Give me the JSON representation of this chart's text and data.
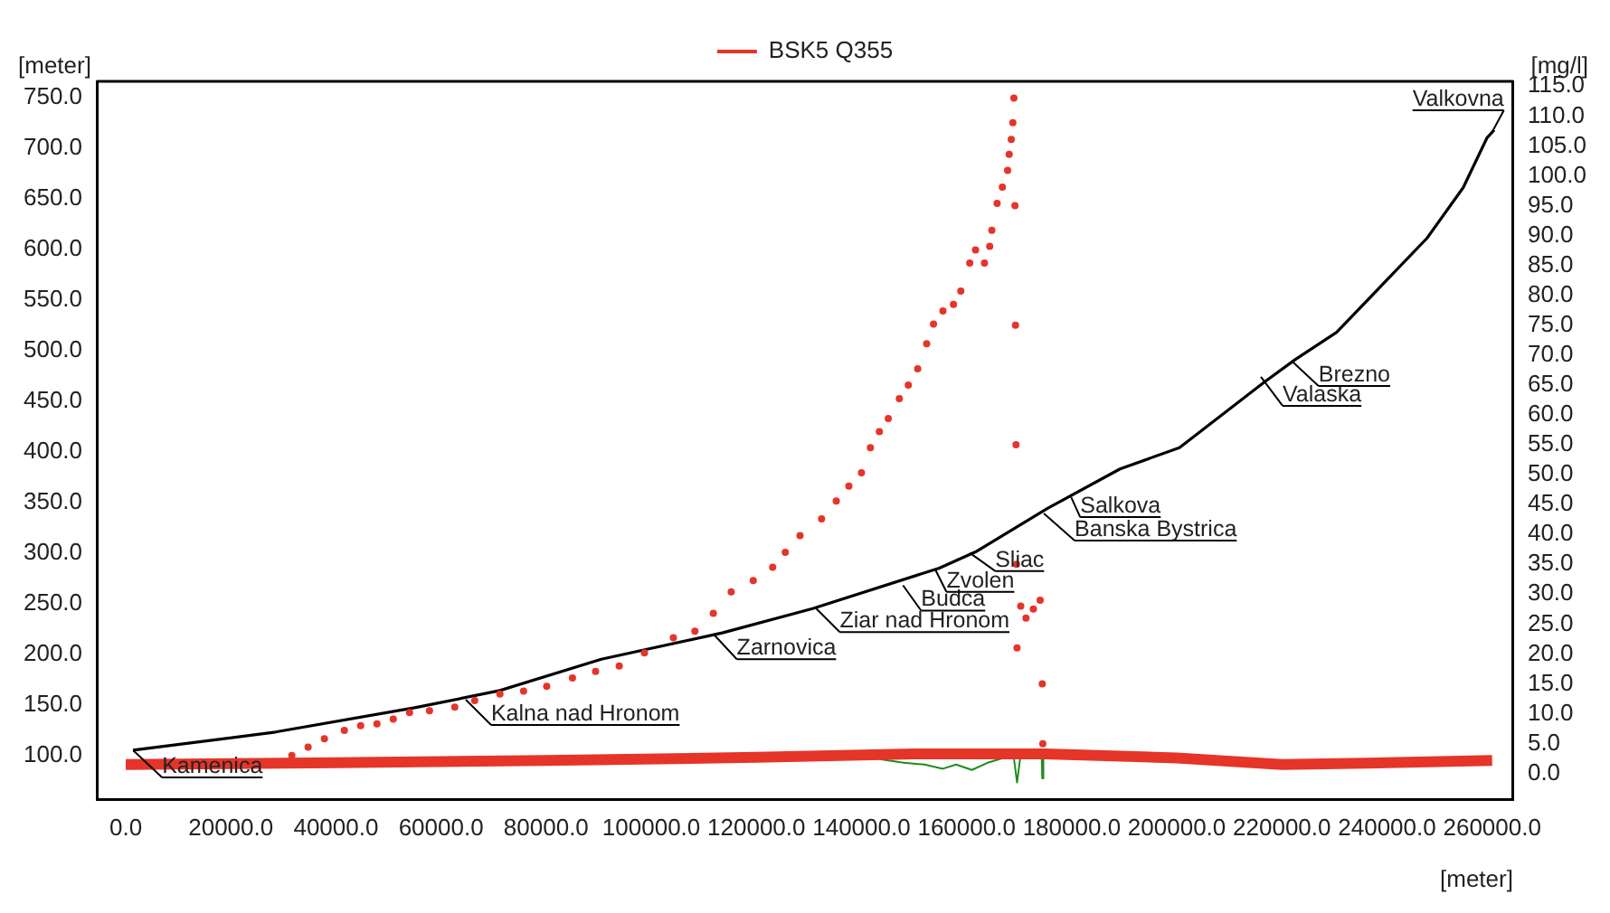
{
  "chart_data": {
    "type": "line",
    "xlabel": "[meter]",
    "ylabel": "[meter]",
    "y2label": "[mg/l]",
    "xlim": [
      -5500,
      264000
    ],
    "ylim": [
      56,
      766
    ],
    "y2lim": [
      -4.4,
      115.8
    ],
    "xticks": [
      {
        "value": 0,
        "label": "0.0"
      },
      {
        "value": 20000,
        "label": "20000.0"
      },
      {
        "value": 40000,
        "label": "40000.0"
      },
      {
        "value": 60000,
        "label": "60000.0"
      },
      {
        "value": 80000,
        "label": "80000.0"
      },
      {
        "value": 100000,
        "label": "100000.0"
      },
      {
        "value": 120000,
        "label": "120000.0"
      },
      {
        "value": 140000,
        "label": "140000.0"
      },
      {
        "value": 160000,
        "label": "160000.0"
      },
      {
        "value": 180000,
        "label": "180000.0"
      },
      {
        "value": 200000,
        "label": "200000.0"
      },
      {
        "value": 220000,
        "label": "220000.0"
      },
      {
        "value": 240000,
        "label": "240000.0"
      },
      {
        "value": 260000,
        "label": "260000.0"
      }
    ],
    "yticks": [
      {
        "value": 100,
        "label": "100.0"
      },
      {
        "value": 150,
        "label": "150.0"
      },
      {
        "value": 200,
        "label": "200.0"
      },
      {
        "value": 250,
        "label": "250.0"
      },
      {
        "value": 300,
        "label": "300.0"
      },
      {
        "value": 350,
        "label": "350.0"
      },
      {
        "value": 400,
        "label": "400.0"
      },
      {
        "value": 450,
        "label": "450.0"
      },
      {
        "value": 500,
        "label": "500.0"
      },
      {
        "value": 550,
        "label": "550.0"
      },
      {
        "value": 600,
        "label": "600.0"
      },
      {
        "value": 650,
        "label": "650.0"
      },
      {
        "value": 700,
        "label": "700.0"
      },
      {
        "value": 750,
        "label": "750.0"
      }
    ],
    "y2ticks": [
      {
        "value": 0,
        "label": "0.0"
      },
      {
        "value": 5,
        "label": "5.0"
      },
      {
        "value": 10,
        "label": "10.0"
      },
      {
        "value": 15,
        "label": "15.0"
      },
      {
        "value": 20,
        "label": "20.0"
      },
      {
        "value": 25,
        "label": "25.0"
      },
      {
        "value": 30,
        "label": "30.0"
      },
      {
        "value": 35,
        "label": "35.0"
      },
      {
        "value": 40,
        "label": "40.0"
      },
      {
        "value": 45,
        "label": "45.0"
      },
      {
        "value": 50,
        "label": "50.0"
      },
      {
        "value": 55,
        "label": "55.0"
      },
      {
        "value": 60,
        "label": "60.0"
      },
      {
        "value": 65,
        "label": "65.0"
      },
      {
        "value": 70,
        "label": "70.0"
      },
      {
        "value": 75,
        "label": "75.0"
      },
      {
        "value": 80,
        "label": "80.0"
      },
      {
        "value": 85,
        "label": "85.0"
      },
      {
        "value": 90,
        "label": "90.0"
      },
      {
        "value": 95,
        "label": "95.0"
      },
      {
        "value": 100,
        "label": "100.0"
      },
      {
        "value": 105,
        "label": "105.0"
      },
      {
        "value": 110,
        "label": "110.0"
      },
      {
        "value": 115,
        "label": "115.0"
      }
    ],
    "grid": false,
    "legend": "top",
    "series": [
      {
        "type": "line",
        "color": "#000000",
        "x": [
          1400,
          28500,
          55000,
          71200,
          90500,
          113500,
          130700,
          154800,
          161700,
          175400,
          189200,
          200500,
          216700,
          222500,
          230400,
          247600,
          254500,
          259000,
          260400
        ],
        "values": [
          105,
          123,
          147,
          164,
          195,
          221,
          245,
          285,
          301,
          344,
          383,
          404,
          469,
          491,
          518,
          611,
          661,
          710,
          718
        ]
      },
      {
        "type": "scatter",
        "name": "BSK5 Q355",
        "color": "#e53528",
        "axis": "y2",
        "marker": "circle",
        "x": [
          31600,
          34700,
          37800,
          41600,
          44700,
          47800,
          50900,
          54000,
          57800,
          62600,
          66400,
          71200,
          75700,
          80100,
          85000,
          89400,
          93900,
          98700,
          104200,
          108300,
          111800,
          115200,
          119400,
          123100,
          125500,
          128300,
          132400,
          135200,
          137600,
          140000,
          141700,
          143400,
          145100,
          147200,
          148900,
          150700,
          152400,
          153700,
          155500,
          157500,
          158900,
          160600,
          161700,
          163400,
          164400,
          164800,
          165800,
          166800,
          167800,
          168100,
          168500,
          168800,
          169000,
          169200,
          169300,
          169400,
          169500,
          169600,
          170300,
          171300,
          172700,
          174000,
          174400,
          174500
        ],
        "values": [
          3.0,
          4.4,
          5.8,
          7.2,
          8.0,
          8.3,
          9.1,
          10.2,
          10.5,
          11.1,
          12.2,
          13.3,
          13.8,
          14.6,
          16.0,
          17.1,
          18.0,
          20.2,
          22.7,
          23.8,
          26.8,
          30.4,
          32.3,
          34.5,
          37.0,
          39.8,
          42.6,
          45.6,
          48.1,
          50.3,
          54.5,
          57.2,
          59.4,
          62.7,
          65.0,
          67.7,
          71.9,
          75.2,
          77.4,
          78.5,
          80.7,
          85.4,
          87.6,
          85.4,
          88.2,
          90.9,
          95.4,
          98.1,
          100.9,
          103.6,
          106.1,
          108.9,
          113.0,
          95,
          75,
          55,
          35,
          21,
          28,
          26,
          27.5,
          29,
          15,
          5
        ]
      },
      {
        "type": "line",
        "color": "#e53528",
        "axis": "y2",
        "x": [
          0,
          40000,
          80000,
          120000,
          150000,
          175000,
          200000,
          220000,
          240000,
          260000
        ],
        "values": [
          1.5,
          1.8,
          2.2,
          2.7,
          3.3,
          3.3,
          2.6,
          1.5,
          1.8,
          2.2
        ]
      },
      {
        "type": "line",
        "color": "#1e8c1e",
        "axis": "y2",
        "x": [
          143400,
          148000,
          152000,
          155500,
          158000,
          161000,
          164000,
          167000,
          169000,
          169600,
          170200,
          174300,
          174400,
          174600
        ],
        "values": [
          2.4,
          1.8,
          1.5,
          0.8,
          1.5,
          0.6,
          1.8,
          2.6,
          2.6,
          -1.5,
          2.6,
          2.6,
          -0.8,
          2.6
        ]
      }
    ],
    "annotations": [
      {
        "text": "Kamenica",
        "x": 1400,
        "y": 105
      },
      {
        "text": "Kalna nad Hronom",
        "x": 64700,
        "y": 155
      },
      {
        "text": "Zarnovica",
        "x": 111800,
        "y": 220
      },
      {
        "text": "Ziar nad Hronom",
        "x": 131400,
        "y": 245
      },
      {
        "text": "Budca",
        "x": 147900,
        "y": 268
      },
      {
        "text": "Zvolen",
        "x": 154100,
        "y": 283
      },
      {
        "text": "Sliac",
        "x": 160600,
        "y": 300
      },
      {
        "text": "Banska Bystrica",
        "x": 174700,
        "y": 339
      },
      {
        "text": "Salkova",
        "x": 179900,
        "y": 355
      },
      {
        "text": "Valaska",
        "x": 216000,
        "y": 474
      },
      {
        "text": "Brezno",
        "x": 221800,
        "y": 490
      },
      {
        "text": "Valkovna",
        "x": 260000,
        "y": 716
      }
    ]
  }
}
